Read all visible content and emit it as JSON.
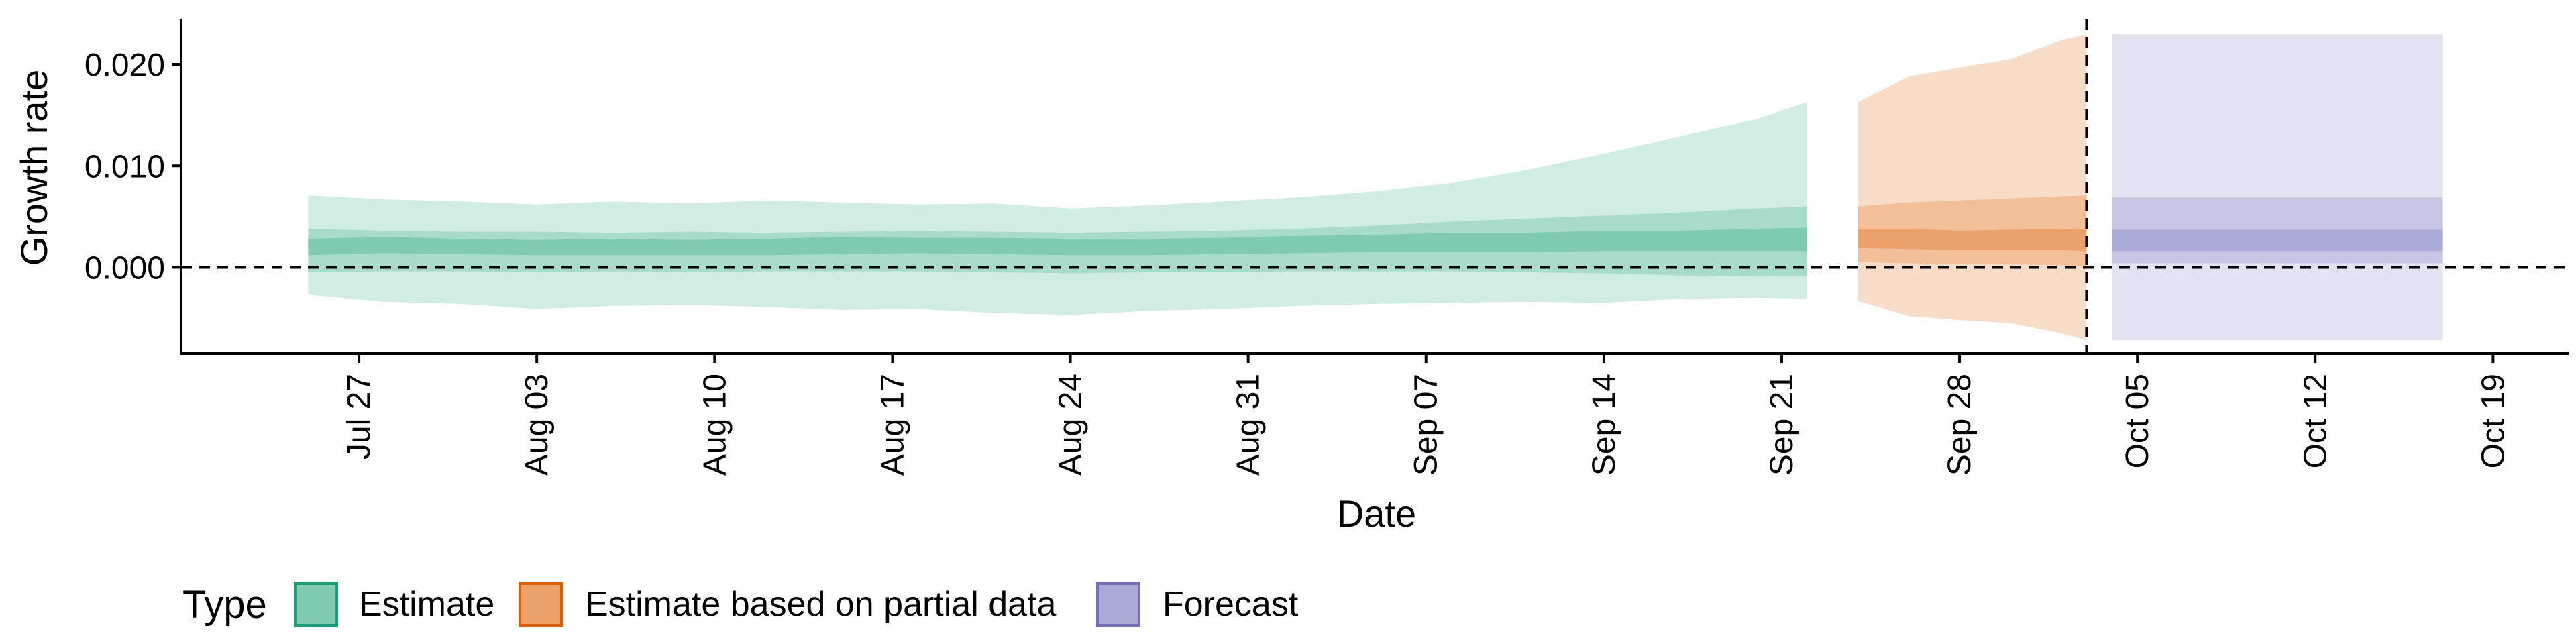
{
  "chart_data": {
    "type": "area",
    "title": "",
    "xlabel": "Date",
    "ylabel": "Growth rate",
    "x_tick_labels": [
      "Jul 27",
      "Aug 03",
      "Aug 10",
      "Aug 17",
      "Aug 24",
      "Aug 31",
      "Sep 07",
      "Sep 14",
      "Sep 21",
      "Sep 28",
      "Oct 05",
      "Oct 12",
      "Oct 19"
    ],
    "x_tick_dates": [
      "2021-07-27",
      "2021-08-03",
      "2021-08-10",
      "2021-08-17",
      "2021-08-24",
      "2021-08-31",
      "2021-09-07",
      "2021-09-14",
      "2021-09-21",
      "2021-09-28",
      "2021-10-05",
      "2021-10-12",
      "2021-10-19"
    ],
    "y_tick_labels": [
      "0.000",
      "0.010",
      "0.020"
    ],
    "y_ticks": [
      0,
      0.01,
      0.02
    ],
    "xlim": [
      "2021-07-20",
      "2021-10-22"
    ],
    "ylim": [
      -0.0085,
      0.0245
    ],
    "reference_lines": {
      "horizontal_y": 0,
      "vertical_date": "2021-10-03"
    },
    "grid": false,
    "legend": {
      "title": "Type",
      "position": "bottom-left",
      "items": [
        {
          "label": "Estimate",
          "fill": "#7fcab1",
          "stroke": "#1b9e77"
        },
        {
          "label": "Estimate based on partial data",
          "fill": "#eca06a",
          "stroke": "#d95f02"
        },
        {
          "label": "Forecast",
          "fill": "#aba9d6",
          "stroke": "#7570b3"
        }
      ]
    },
    "series": [
      {
        "name": "Estimate",
        "colors": {
          "outer": "#d0ece3",
          "mid": "#a9dbca",
          "inner": "#7fcab1"
        },
        "x": [
          "2021-07-25",
          "2021-07-28",
          "2021-07-31",
          "2021-08-03",
          "2021-08-06",
          "2021-08-09",
          "2021-08-12",
          "2021-08-15",
          "2021-08-18",
          "2021-08-21",
          "2021-08-24",
          "2021-08-27",
          "2021-08-30",
          "2021-09-02",
          "2021-09-05",
          "2021-09-08",
          "2021-09-11",
          "2021-09-14",
          "2021-09-17",
          "2021-09-20",
          "2021-09-22"
        ],
        "median": [
          0.002,
          0.0022,
          0.002,
          0.0019,
          0.002,
          0.0019,
          0.002,
          0.0021,
          0.0021,
          0.0021,
          0.0019,
          0.002,
          0.0021,
          0.0022,
          0.0023,
          0.0024,
          0.0024,
          0.0025,
          0.0025,
          0.0026,
          0.0027
        ],
        "inner_lower": [
          0.0012,
          0.0014,
          0.0013,
          0.0012,
          0.0012,
          0.0012,
          0.0012,
          0.0013,
          0.0014,
          0.0013,
          0.0012,
          0.0012,
          0.0013,
          0.0014,
          0.0015,
          0.0015,
          0.0015,
          0.0016,
          0.0016,
          0.0016,
          0.0016
        ],
        "inner_upper": [
          0.0028,
          0.003,
          0.0028,
          0.0027,
          0.0028,
          0.0027,
          0.0028,
          0.003,
          0.0029,
          0.0029,
          0.0028,
          0.0028,
          0.0029,
          0.0031,
          0.0032,
          0.0034,
          0.0034,
          0.0036,
          0.0036,
          0.0038,
          0.0039
        ],
        "mid_lower": [
          -0.0005,
          -0.0004,
          -0.0004,
          -0.0005,
          -0.0004,
          -0.0005,
          -0.0004,
          -0.0004,
          -0.0004,
          -0.0005,
          -0.0006,
          -0.0005,
          -0.0005,
          -0.0004,
          -0.0004,
          -0.0004,
          -0.0005,
          -0.0006,
          -0.0008,
          -0.0009,
          -0.0009
        ],
        "mid_upper": [
          0.0038,
          0.0036,
          0.0035,
          0.0035,
          0.0034,
          0.0035,
          0.0034,
          0.0035,
          0.0036,
          0.0035,
          0.0034,
          0.0035,
          0.0036,
          0.0038,
          0.0041,
          0.0045,
          0.0048,
          0.0051,
          0.0054,
          0.0058,
          0.006
        ],
        "outer_lower": [
          -0.0027,
          -0.0034,
          -0.0036,
          -0.0041,
          -0.0038,
          -0.0037,
          -0.0039,
          -0.0042,
          -0.0041,
          -0.0045,
          -0.0047,
          -0.0043,
          -0.0041,
          -0.0038,
          -0.0036,
          -0.0035,
          -0.0034,
          -0.0035,
          -0.0031,
          -0.003,
          -0.0031
        ],
        "outer_upper": [
          0.0071,
          0.0067,
          0.0065,
          0.0062,
          0.0065,
          0.0063,
          0.0066,
          0.0064,
          0.0062,
          0.0063,
          0.0058,
          0.0061,
          0.0065,
          0.0069,
          0.0075,
          0.0083,
          0.0096,
          0.0112,
          0.0129,
          0.0146,
          0.0163
        ]
      },
      {
        "name": "Estimate based on partial data",
        "colors": {
          "outer": "#f7dcc8",
          "mid": "#f2bf99",
          "inner": "#eca06a"
        },
        "x": [
          "2021-09-24",
          "2021-09-26",
          "2021-09-28",
          "2021-09-30",
          "2021-10-02",
          "2021-10-03"
        ],
        "median": [
          0.0029,
          0.0028,
          0.0026,
          0.0027,
          0.0028,
          0.0027
        ],
        "inner_lower": [
          0.0019,
          0.0018,
          0.0017,
          0.0017,
          0.0017,
          0.0016
        ],
        "inner_upper": [
          0.0038,
          0.0038,
          0.0036,
          0.0037,
          0.0038,
          0.0037
        ],
        "mid_lower": [
          0.0005,
          0.0004,
          0.0003,
          0.0003,
          0.0002,
          0.0001
        ],
        "mid_upper": [
          0.006,
          0.0064,
          0.0066,
          0.0068,
          0.007,
          0.0071
        ],
        "outer_lower": [
          -0.0033,
          -0.0048,
          -0.0052,
          -0.0055,
          -0.0065,
          -0.0072
        ],
        "outer_upper": [
          0.0163,
          0.0188,
          0.0197,
          0.0205,
          0.0224,
          0.023
        ]
      },
      {
        "name": "Forecast",
        "colors": {
          "outer": "#e3e2f0",
          "mid": "#c6c5e4",
          "inner": "#aba9d6"
        },
        "x": [
          "2021-10-04",
          "2021-10-17"
        ],
        "median": [
          0.0027,
          0.0027
        ],
        "inner_lower": [
          0.0016,
          0.0016
        ],
        "inner_upper": [
          0.0037,
          0.0037
        ],
        "mid_lower": [
          0.0004,
          0.0004
        ],
        "mid_upper": [
          0.0069,
          0.0069
        ],
        "outer_lower": [
          -0.0072,
          -0.0072
        ],
        "outer_upper": [
          0.023,
          0.023
        ]
      }
    ]
  }
}
